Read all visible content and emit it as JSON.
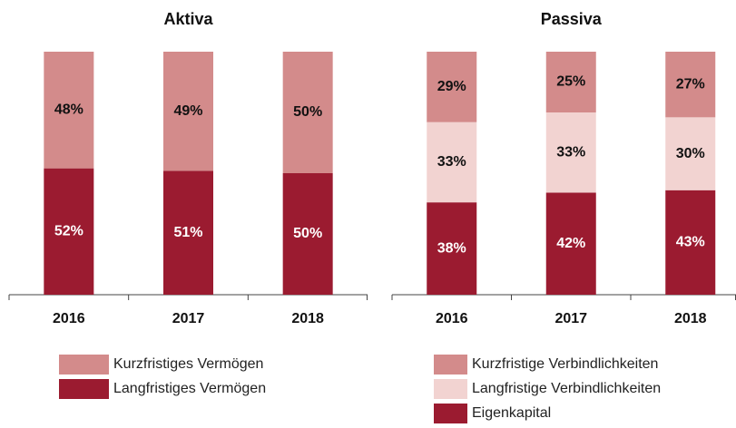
{
  "chart_data": [
    {
      "type": "stacked_bar",
      "title": "Aktiva",
      "categories": [
        "2016",
        "2017",
        "2018"
      ],
      "series": [
        {
          "name": "Kurzfristiges Vermögen",
          "color": "#d38b8b",
          "values": [
            48,
            49,
            50
          ],
          "value_labels": [
            "48%",
            "49%",
            "50%"
          ]
        },
        {
          "name": "Langfristiges Vermögen",
          "color": "#9b1b30",
          "values": [
            52,
            51,
            50
          ],
          "value_labels": [
            "52%",
            "51%",
            "50%"
          ]
        }
      ]
    },
    {
      "type": "stacked_bar",
      "title": "Passiva",
      "categories": [
        "2016",
        "2017",
        "2018"
      ],
      "series": [
        {
          "name": "Kurzfristige Verbindlichkeiten",
          "color": "#d38b8b",
          "values": [
            29,
            25,
            27
          ],
          "value_labels": [
            "29%",
            "25%",
            "27%"
          ]
        },
        {
          "name": "Langfristige Verbindlichkeiten",
          "color": "#f2d3d1",
          "values": [
            33,
            33,
            30
          ],
          "value_labels": [
            "33%",
            "33%",
            "30%"
          ]
        },
        {
          "name": "Eigenkapital",
          "color": "#9b1b30",
          "values": [
            38,
            42,
            43
          ],
          "value_labels": [
            "38%",
            "42%",
            "43%"
          ]
        }
      ]
    }
  ]
}
